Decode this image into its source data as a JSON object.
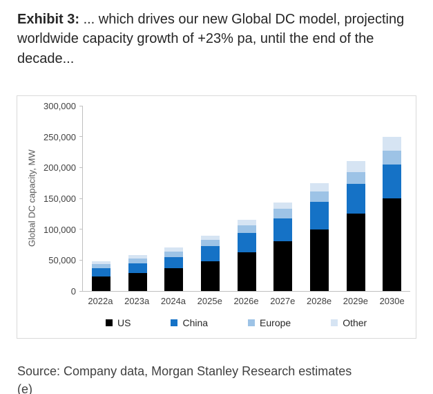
{
  "header": {
    "exhibit_label": "Exhibit 3:",
    "title_rest": " ... which drives our new Global DC model, projecting worldwide capacity growth of +23% pa, until the end of the decade..."
  },
  "chart_data": {
    "type": "bar",
    "stacked": true,
    "title": "",
    "xlabel": "",
    "ylabel": "Global DC capacity, MW",
    "ylim": [
      0,
      300000
    ],
    "ytick_interval": 50000,
    "yticks": [
      "300,000",
      "250,000",
      "200,000",
      "150,000",
      "100,000",
      "50,000",
      "0"
    ],
    "categories": [
      "2022a",
      "2023a",
      "2024a",
      "2025e",
      "2026e",
      "2027e",
      "2028e",
      "2029e",
      "2030e"
    ],
    "series": [
      {
        "name": "US",
        "color": "#000000",
        "values": [
          24000,
          29000,
          37000,
          48000,
          63000,
          81000,
          100000,
          125000,
          150000
        ]
      },
      {
        "name": "China",
        "color": "#1572c6",
        "values": [
          13000,
          16000,
          18000,
          25000,
          31000,
          37000,
          44000,
          48000,
          55000
        ]
      },
      {
        "name": "Europe",
        "color": "#9dc3e6",
        "values": [
          7000,
          8000,
          9000,
          10000,
          12000,
          15000,
          17000,
          20000,
          22000
        ]
      },
      {
        "name": "Other",
        "color": "#d6e4f3",
        "values": [
          4000,
          5000,
          6000,
          7000,
          9000,
          10000,
          14000,
          17000,
          23000
        ]
      }
    ],
    "grid": false,
    "legend_position": "bottom"
  },
  "source": "Source: Company data, Morgan Stanley Research estimates (e)"
}
